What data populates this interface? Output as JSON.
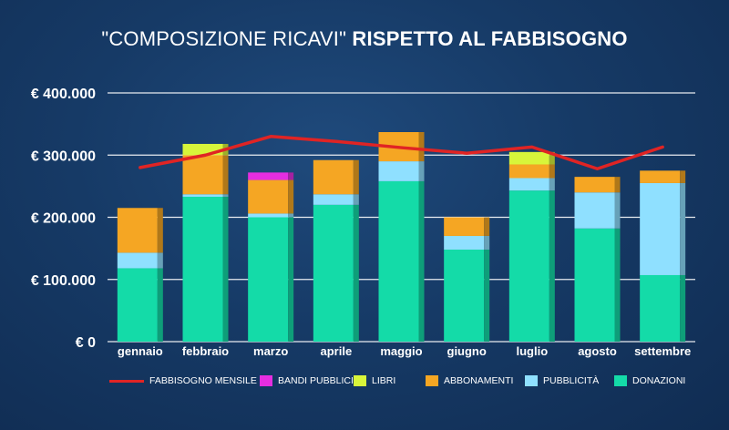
{
  "title": {
    "part1": "\"COMPOSIZIONE RICAVI\"",
    "part2": "RISPETTO AL FABBISOGNO"
  },
  "chart_data": {
    "type": "bar",
    "stacked": true,
    "categories": [
      "gennaio",
      "febbraio",
      "marzo",
      "aprile",
      "maggio",
      "giugno",
      "luglio",
      "agosto",
      "settembre"
    ],
    "y_ticks": [
      "€ 0",
      "€ 100.000",
      "€ 200.000",
      "€ 300.000",
      "€ 400.000"
    ],
    "ylim": [
      0,
      400000
    ],
    "grid": true,
    "legend_position": "bottom",
    "series": [
      {
        "name": "DONAZIONI",
        "color": "#14dba8",
        "values": [
          118000,
          233000,
          200000,
          220000,
          258000,
          148000,
          243000,
          182000,
          107000
        ]
      },
      {
        "name": "PUBBLICITÀ",
        "color": "#8fe0ff",
        "values": [
          25000,
          4000,
          6000,
          17000,
          32000,
          22000,
          20000,
          58000,
          148000
        ]
      },
      {
        "name": "ABBONAMENTI",
        "color": "#f5a623",
        "values": [
          72000,
          63000,
          54000,
          55000,
          47000,
          30000,
          22000,
          25000,
          20000
        ]
      },
      {
        "name": "LIBRI",
        "color": "#d8f53a",
        "values": [
          0,
          18000,
          0,
          0,
          0,
          0,
          20000,
          0,
          0
        ]
      },
      {
        "name": "BANDI PUBBLICI",
        "color": "#e52ee0",
        "values": [
          0,
          0,
          12000,
          0,
          0,
          0,
          0,
          0,
          0
        ]
      }
    ],
    "line": {
      "name": "FABBISOGNO MENSILE",
      "color": "#e02424",
      "values": [
        280000,
        300000,
        330000,
        322000,
        312000,
        303000,
        313000,
        278000,
        313000
      ]
    }
  },
  "legend": [
    {
      "label": "FABBISOGNO MENSILE",
      "kind": "line",
      "color": "#e02424"
    },
    {
      "label": "BANDI PUBBLICI",
      "kind": "box",
      "color": "#e52ee0"
    },
    {
      "label": "LIBRI",
      "kind": "box",
      "color": "#d8f53a"
    },
    {
      "label": "ABBONAMENTI",
      "kind": "box",
      "color": "#f5a623"
    },
    {
      "label": "PUBBLICITÀ",
      "kind": "box",
      "color": "#8fe0ff"
    },
    {
      "label": "DONAZIONI",
      "kind": "box",
      "color": "#14dba8"
    }
  ]
}
